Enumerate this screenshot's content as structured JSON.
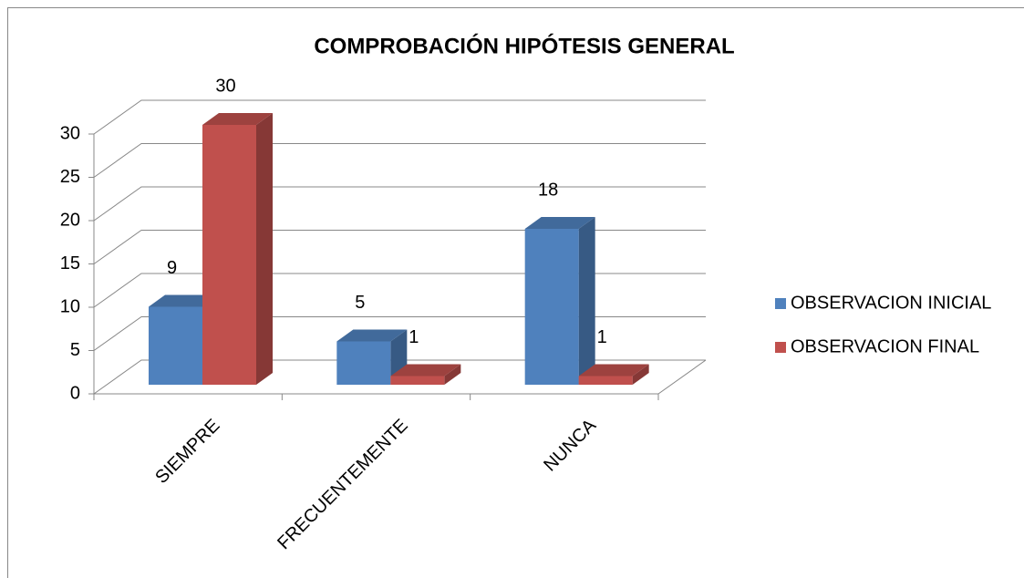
{
  "chart_data": {
    "type": "bar",
    "title": "COMPROBACIÓN HIPÓTESIS GENERAL",
    "categories": [
      "SIEMPRE",
      "FRECUENTEMENTE",
      "NUNCA"
    ],
    "series": [
      {
        "name": "OBSERVACION INICIAL",
        "color": "#4f81bd",
        "values": [
          9,
          5,
          18
        ]
      },
      {
        "name": "OBSERVACION FINAL",
        "color": "#c0504d",
        "values": [
          30,
          1,
          1
        ]
      }
    ],
    "ylim": [
      0,
      30
    ],
    "yticks": [
      0,
      5,
      10,
      15,
      20,
      25,
      30
    ],
    "grid": true,
    "legend": "right"
  }
}
